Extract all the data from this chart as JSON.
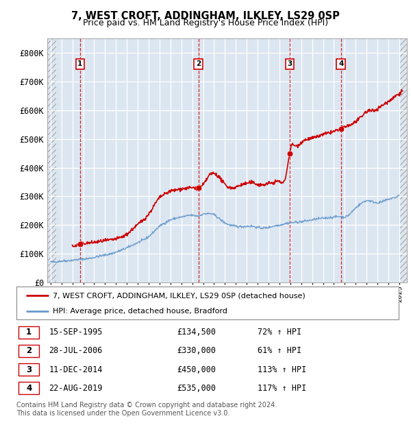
{
  "title": "7, WEST CROFT, ADDINGHAM, ILKLEY, LS29 0SP",
  "subtitle": "Price paid vs. HM Land Registry's House Price Index (HPI)",
  "ylim": [
    0,
    850000
  ],
  "yticks": [
    0,
    100000,
    200000,
    300000,
    400000,
    500000,
    600000,
    700000,
    800000
  ],
  "ytick_labels": [
    "£0",
    "£100K",
    "£200K",
    "£300K",
    "£400K",
    "£500K",
    "£600K",
    "£700K",
    "£800K"
  ],
  "xlim_start": 1992.7,
  "xlim_end": 2025.7,
  "plot_bg_color": "#dce6f1",
  "grid_color": "#ffffff",
  "hpi_line_color": "#6699cc",
  "price_line_color": "#cc0000",
  "purchases": [
    {
      "label": "1",
      "date_x": 1995.71,
      "price": 134500
    },
    {
      "label": "2",
      "date_x": 2006.57,
      "price": 330000
    },
    {
      "label": "3",
      "date_x": 2014.94,
      "price": 450000
    },
    {
      "label": "4",
      "date_x": 2019.65,
      "price": 535000
    }
  ],
  "legend_line1": "7, WEST CROFT, ADDINGHAM, ILKLEY, LS29 0SP (detached house)",
  "legend_line2": "HPI: Average price, detached house, Bradford",
  "table_rows": [
    {
      "num": "1",
      "date": "15-SEP-1995",
      "price": "£134,500",
      "hpi": "72% ↑ HPI"
    },
    {
      "num": "2",
      "date": "28-JUL-2006",
      "price": "£330,000",
      "hpi": "61% ↑ HPI"
    },
    {
      "num": "3",
      "date": "11-DEC-2014",
      "price": "£450,000",
      "hpi": "113% ↑ HPI"
    },
    {
      "num": "4",
      "date": "22-AUG-2019",
      "price": "£535,000",
      "hpi": "117% ↑ HPI"
    }
  ],
  "footer": "Contains HM Land Registry data © Crown copyright and database right 2024.\nThis data is licensed under the Open Government Licence v3.0.",
  "hpi_data_x": [
    1993.0,
    1993.5,
    1994.0,
    1994.5,
    1995.0,
    1995.5,
    1996.0,
    1996.5,
    1997.0,
    1997.5,
    1998.0,
    1998.5,
    1999.0,
    1999.5,
    2000.0,
    2000.5,
    2001.0,
    2001.5,
    2002.0,
    2002.5,
    2003.0,
    2003.5,
    2004.0,
    2004.5,
    2005.0,
    2005.5,
    2006.0,
    2006.5,
    2007.0,
    2007.5,
    2008.0,
    2008.5,
    2009.0,
    2009.5,
    2010.0,
    2010.5,
    2011.0,
    2011.5,
    2012.0,
    2012.5,
    2013.0,
    2013.5,
    2014.0,
    2014.5,
    2015.0,
    2015.5,
    2016.0,
    2016.5,
    2017.0,
    2017.5,
    2018.0,
    2018.5,
    2019.0,
    2019.5,
    2020.0,
    2020.5,
    2021.0,
    2021.5,
    2022.0,
    2022.5,
    2023.0,
    2023.5,
    2024.0,
    2024.5,
    2025.0
  ],
  "hpi_data_y": [
    72000,
    72500,
    75000,
    76000,
    78000,
    80000,
    82000,
    84000,
    88000,
    92000,
    96000,
    100000,
    106000,
    113000,
    121000,
    130000,
    139000,
    148000,
    160000,
    178000,
    196000,
    208000,
    218000,
    224000,
    228000,
    232000,
    234000,
    232000,
    238000,
    240000,
    236000,
    222000,
    208000,
    200000,
    196000,
    195000,
    196000,
    196000,
    192000,
    190000,
    192000,
    197000,
    200000,
    205000,
    208000,
    210000,
    212000,
    215000,
    218000,
    222000,
    224000,
    226000,
    228000,
    230000,
    228000,
    240000,
    260000,
    275000,
    285000,
    282000,
    278000,
    282000,
    290000,
    295000,
    305000
  ],
  "prop_data_x": [
    1995.0,
    1995.5,
    1995.71,
    1996.0,
    1996.5,
    1997.0,
    1997.5,
    1998.0,
    1998.5,
    1999.0,
    1999.5,
    2000.0,
    2000.5,
    2001.0,
    2001.5,
    2002.0,
    2002.5,
    2003.0,
    2003.5,
    2004.0,
    2004.5,
    2005.0,
    2005.5,
    2006.0,
    2006.57,
    2007.0,
    2007.5,
    2008.0,
    2008.5,
    2009.0,
    2009.5,
    2010.0,
    2010.5,
    2011.0,
    2011.5,
    2012.0,
    2012.5,
    2013.0,
    2013.5,
    2014.0,
    2014.5,
    2014.94,
    2015.0,
    2015.5,
    2016.0,
    2016.5,
    2017.0,
    2017.5,
    2018.0,
    2018.5,
    2019.0,
    2019.65,
    2020.0,
    2020.5,
    2021.0,
    2021.5,
    2022.0,
    2022.5,
    2023.0,
    2023.5,
    2024.0,
    2024.5,
    2025.0,
    2025.3
  ],
  "prop_data_y": [
    128000,
    131000,
    134500,
    136000,
    138000,
    140000,
    143000,
    146000,
    148000,
    152000,
    158000,
    168000,
    185000,
    202000,
    218000,
    238000,
    268000,
    295000,
    308000,
    318000,
    322000,
    326000,
    328000,
    330000,
    330000,
    340000,
    370000,
    380000,
    365000,
    342000,
    330000,
    332000,
    340000,
    345000,
    348000,
    342000,
    340000,
    345000,
    348000,
    352000,
    358000,
    450000,
    462000,
    475000,
    488000,
    498000,
    502000,
    508000,
    515000,
    520000,
    526000,
    535000,
    542000,
    548000,
    560000,
    575000,
    595000,
    598000,
    605000,
    618000,
    630000,
    645000,
    658000,
    668000
  ],
  "hatch_start": 1993.5,
  "hatch_end_right": 2025.0
}
